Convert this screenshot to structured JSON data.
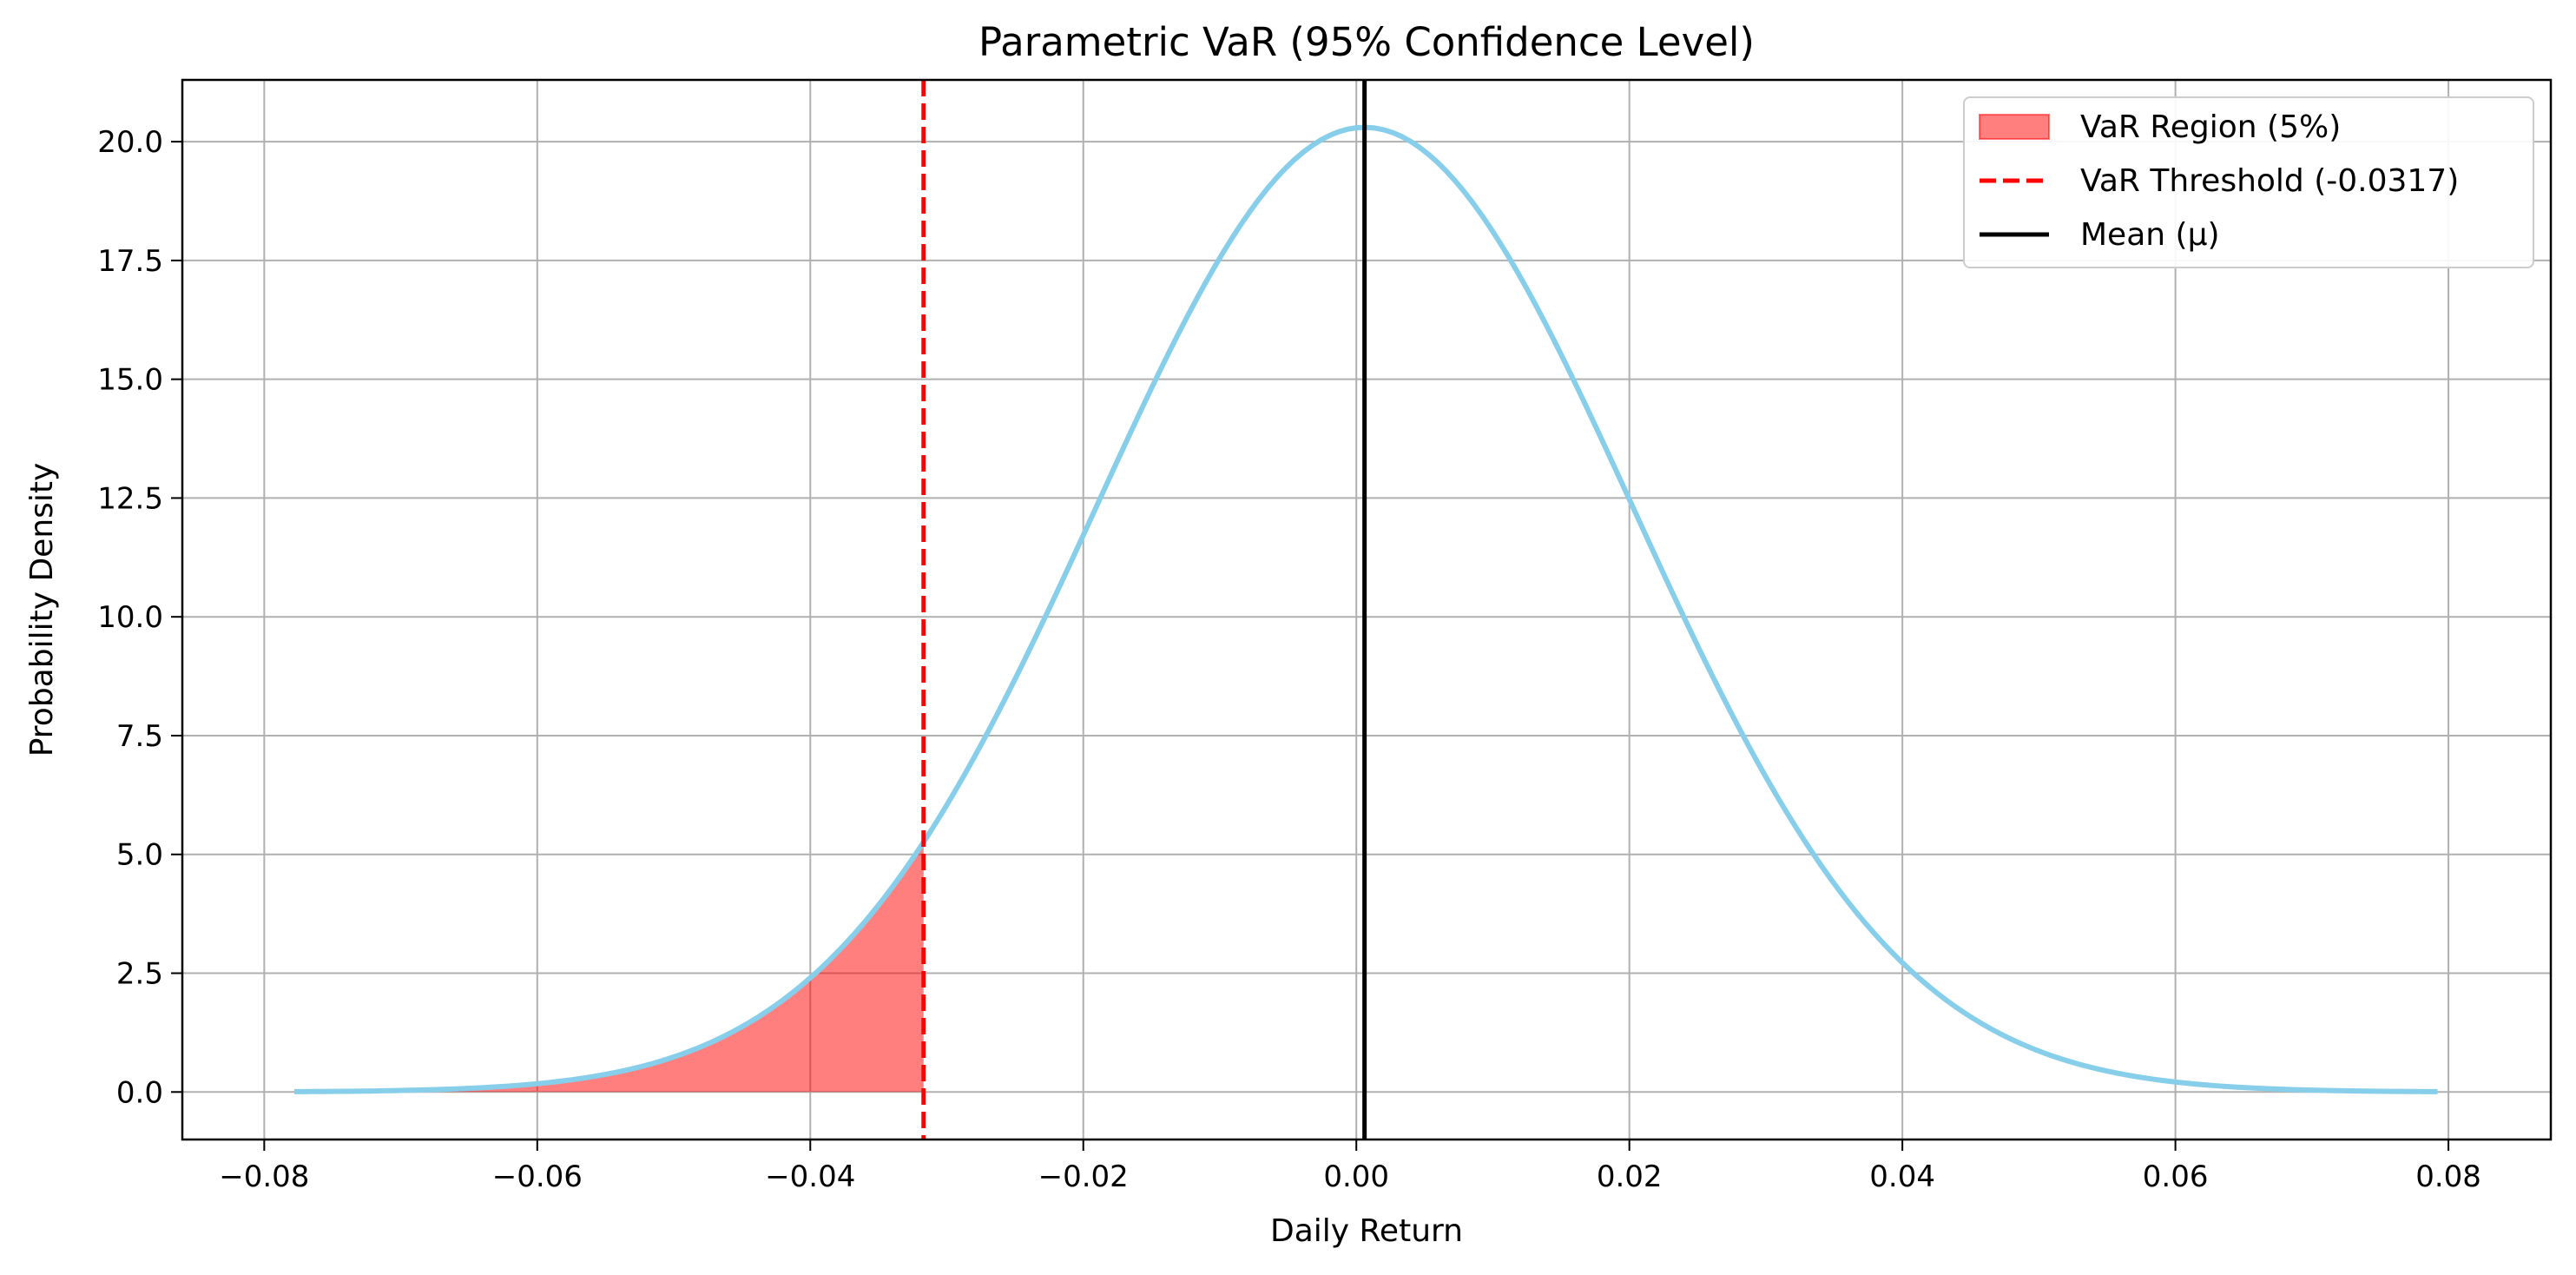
{
  "chart_data": {
    "type": "line",
    "title": "Parametric VaR (95% Confidence Level)",
    "xlabel": "Daily Return",
    "ylabel": "Probability Density",
    "xlim": [
      -0.086,
      0.0875
    ],
    "ylim": [
      -1.0,
      21.3
    ],
    "xticks": [
      {
        "value": -0.08,
        "label": "−0.08"
      },
      {
        "value": -0.06,
        "label": "−0.06"
      },
      {
        "value": -0.04,
        "label": "−0.04"
      },
      {
        "value": -0.02,
        "label": "−0.02"
      },
      {
        "value": 0.0,
        "label": "0.00"
      },
      {
        "value": 0.02,
        "label": "0.02"
      },
      {
        "value": 0.04,
        "label": "0.04"
      },
      {
        "value": 0.06,
        "label": "0.06"
      },
      {
        "value": 0.08,
        "label": "0.08"
      }
    ],
    "yticks": [
      {
        "value": 0.0,
        "label": "0.0"
      },
      {
        "value": 2.5,
        "label": "2.5"
      },
      {
        "value": 5.0,
        "label": "5.0"
      },
      {
        "value": 7.5,
        "label": "7.5"
      },
      {
        "value": 10.0,
        "label": "10.0"
      },
      {
        "value": 12.5,
        "label": "12.5"
      },
      {
        "value": 15.0,
        "label": "15.0"
      },
      {
        "value": 17.5,
        "label": "17.5"
      },
      {
        "value": 20.0,
        "label": "20.0"
      }
    ],
    "grid": true,
    "legend_position": "top-right",
    "distribution": {
      "mean": 0.0006,
      "std": 0.01965,
      "x_min": -0.0778,
      "x_max": 0.0792,
      "points": 240
    },
    "series": [
      {
        "kind": "curve",
        "color": "#87ceeb"
      },
      {
        "name": "VaR Region (5%)",
        "kind": "fill",
        "x_from": -0.0778,
        "x_to": -0.0317,
        "color": "#ff0000",
        "alpha": 0.5
      },
      {
        "name": "VaR Threshold (-0.0317)",
        "kind": "vline",
        "x": -0.0317,
        "color": "#ff0000",
        "style": "dashed"
      },
      {
        "name": "Mean (μ)",
        "kind": "vline",
        "x": 0.0006,
        "color": "#000000",
        "style": "solid"
      }
    ]
  }
}
